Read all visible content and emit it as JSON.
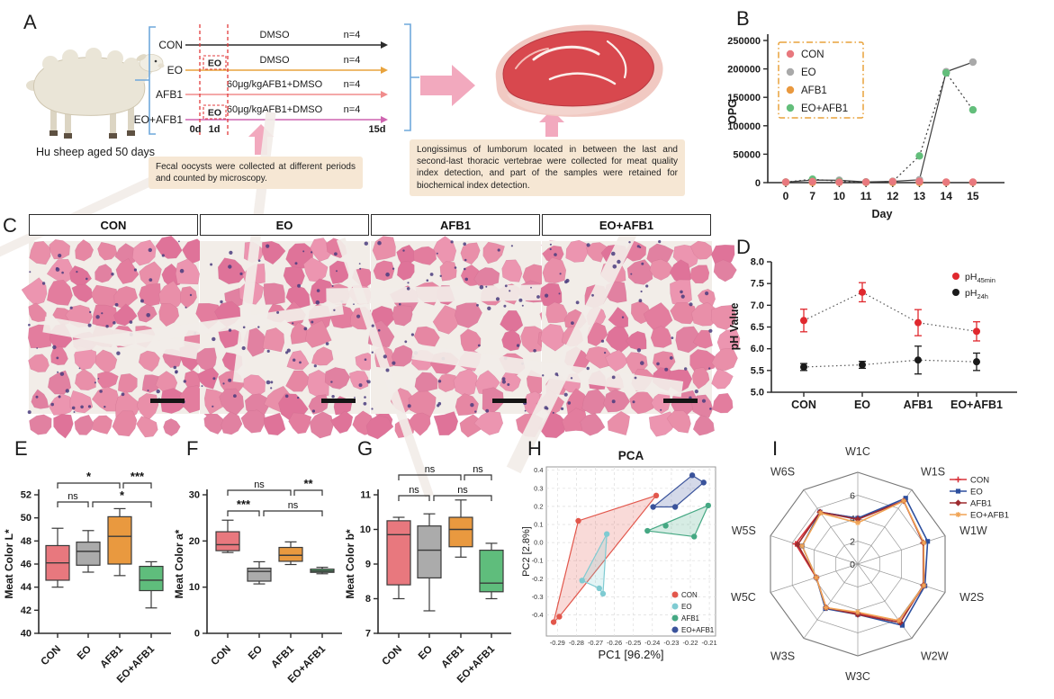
{
  "panel_letters": {
    "A": "A",
    "B": "B",
    "C": "C",
    "D": "D",
    "E": "E",
    "F": "F",
    "G": "G",
    "H": "H",
    "I": "I"
  },
  "groups": [
    "CON",
    "EO",
    "AFB1",
    "EO+AFB1"
  ],
  "group_colors": {
    "CON": "#E8787E",
    "EO": "#ABABAB",
    "AFB1": "#E9993F",
    "EO+AFB1": "#5FBD7C"
  },
  "panelA": {
    "sheep_caption": "Hu sheep aged 50 days",
    "eo_box_label": "EO",
    "timeline": {
      "start": "0d",
      "second": "1d",
      "end": "15d"
    },
    "rows": [
      {
        "name": "CON",
        "treatment": "DMSO",
        "n": "n=4",
        "color": "#2b2b2b",
        "eo_pre": false
      },
      {
        "name": "EO",
        "treatment": "DMSO",
        "n": "n=4",
        "color": "#E8A33D",
        "eo_pre": true
      },
      {
        "name": "AFB1",
        "treatment": "60μg/kgAFB1+DMSO",
        "n": "n=4",
        "color": "#F08C8C",
        "eo_pre": false
      },
      {
        "name": "EO+AFB1",
        "treatment": "60μg/kgAFB1+DMSO",
        "n": "n=4",
        "color": "#CE64B0",
        "eo_pre": true
      }
    ],
    "note_left": "Fecal oocysts were collected at different periods and counted by microscopy.",
    "note_right": "Longissimus of lumborum located in between the last and second-last thoracic vertebrae  were collected for meat quality index detection, and part of the samples were retained for biochemical index detection."
  },
  "panelC": {
    "groups": [
      "CON",
      "EO",
      "AFB1",
      "EO+AFB1"
    ]
  },
  "chart_data": [
    {
      "id": "B",
      "type": "scatter-line",
      "title": "",
      "xlabel": "Day",
      "ylabel": "OPG",
      "x": [
        0,
        7,
        10,
        11,
        12,
        13,
        14,
        15
      ],
      "xtick_labels": [
        "0",
        "7",
        "10",
        "11",
        "12",
        "13",
        "14",
        "15"
      ],
      "ylim": [
        0,
        250000
      ],
      "ytick_labels": [
        "0",
        "50000",
        "100000",
        "150000",
        "200000",
        "250000"
      ],
      "legend_border": "#E9A23B",
      "series": [
        {
          "name": "AFB1",
          "color": "#E9993F",
          "line": "none",
          "values": [
            600,
            600,
            600,
            600,
            600,
            600,
            600,
            600
          ]
        },
        {
          "name": "EO",
          "color": "#A9A9A9",
          "line": "solid",
          "values": [
            900,
            4500,
            4200,
            1200,
            2200,
            5000,
            195000,
            212000
          ]
        },
        {
          "name": "EO+AFB1",
          "color": "#63BE7B",
          "line": "dotted",
          "values": [
            900,
            6000,
            2200,
            900,
            1800,
            47000,
            193000,
            128000
          ]
        },
        {
          "name": "CON",
          "color": "#E8787E",
          "line": "none",
          "values": [
            900,
            1800,
            900,
            900,
            1800,
            2200,
            900,
            900
          ]
        }
      ],
      "legend_order": [
        "CON",
        "EO",
        "AFB1",
        "EO+AFB1"
      ],
      "legend_colors": [
        "#E8787E",
        "#A9A9A9",
        "#E9993F",
        "#63BE7B"
      ]
    },
    {
      "id": "D",
      "type": "point-error",
      "ylabel": "pH Value",
      "categories": [
        "CON",
        "EO",
        "AFB1",
        "EO+AFB1"
      ],
      "ylim": [
        5.0,
        8.0
      ],
      "ytick_labels": [
        "5.0",
        "5.5",
        "6.0",
        "6.5",
        "7.0",
        "7.5",
        "8.0"
      ],
      "series": [
        {
          "name": "pH45min",
          "base": "pH",
          "sub": "45min",
          "color": "#E0282E",
          "means": [
            6.65,
            7.3,
            6.6,
            6.4
          ],
          "errors": [
            0.26,
            0.22,
            0.3,
            0.22
          ]
        },
        {
          "name": "pH24h",
          "base": "pH",
          "sub": "24h",
          "color": "#1a1a1a",
          "means": [
            5.58,
            5.63,
            5.74,
            5.7
          ],
          "errors": [
            0.08,
            0.08,
            0.32,
            0.2
          ]
        }
      ]
    },
    {
      "id": "E",
      "type": "box",
      "ylabel": "Meat Color L*",
      "categories": [
        "CON",
        "EO",
        "AFB1",
        "EO+AFB1"
      ],
      "colors": [
        "#E8787E",
        "#ABABAB",
        "#E9993F",
        "#5FBD7C"
      ],
      "ylim": [
        40,
        52
      ],
      "ytick_labels": [
        "40",
        "42",
        "44",
        "46",
        "48",
        "50",
        "52"
      ],
      "boxes": [
        {
          "min": 44.0,
          "q1": 44.6,
          "med": 46.1,
          "q3": 47.6,
          "max": 49.1
        },
        {
          "min": 45.3,
          "q1": 45.9,
          "med": 47.1,
          "q3": 47.9,
          "max": 48.9
        },
        {
          "min": 45.0,
          "q1": 46.0,
          "med": 48.4,
          "q3": 50.1,
          "max": 50.8
        },
        {
          "min": 42.2,
          "q1": 43.7,
          "med": 44.6,
          "q3": 45.8,
          "max": 46.2
        }
      ],
      "sig": [
        {
          "row": 1,
          "a": 0,
          "b": 2,
          "label": "*"
        },
        {
          "row": 1,
          "a": 2,
          "b": 3,
          "label": "***"
        },
        {
          "row": 2,
          "a": 0,
          "b": 1,
          "label": "ns"
        },
        {
          "row": 2,
          "a": 1,
          "b": 3,
          "label": "*"
        }
      ]
    },
    {
      "id": "F",
      "type": "box",
      "ylabel": "Meat Color a*",
      "categories": [
        "CON",
        "EO",
        "AFB1",
        "EO+AFB1"
      ],
      "colors": [
        "#E8787E",
        "#ABABAB",
        "#E9993F",
        "#5FBD7C"
      ],
      "ylim": [
        0,
        30
      ],
      "ytick_labels": [
        "0",
        "10",
        "20",
        "30"
      ],
      "boxes": [
        {
          "min": 17.5,
          "q1": 17.9,
          "med": 19.2,
          "q3": 22.0,
          "max": 24.5
        },
        {
          "min": 10.7,
          "q1": 11.3,
          "med": 13.4,
          "q3": 14.1,
          "max": 15.5
        },
        {
          "min": 14.9,
          "q1": 15.6,
          "med": 16.9,
          "q3": 18.6,
          "max": 19.8
        },
        {
          "min": 12.9,
          "q1": 13.2,
          "med": 13.5,
          "q3": 13.9,
          "max": 14.3
        }
      ],
      "sig": [
        {
          "row": 1,
          "a": 0,
          "b": 2,
          "label": "ns"
        },
        {
          "row": 1,
          "a": 2,
          "b": 3,
          "label": "**"
        },
        {
          "row": 2,
          "a": 0,
          "b": 1,
          "label": "***"
        },
        {
          "row": 2,
          "a": 1,
          "b": 3,
          "label": "ns"
        }
      ]
    },
    {
      "id": "G",
      "type": "box",
      "ylabel": "Meat Color b*",
      "categories": [
        "CON",
        "EO",
        "AFB1",
        "EO+AFB1"
      ],
      "colors": [
        "#E8787E",
        "#ABABAB",
        "#E9993F",
        "#5FBD7C"
      ],
      "ylim": [
        7,
        11
      ],
      "ytick_labels": [
        "7",
        "8",
        "9",
        "10",
        "11"
      ],
      "boxes": [
        {
          "min": 8.0,
          "q1": 8.4,
          "med": 9.85,
          "q3": 10.25,
          "max": 10.35
        },
        {
          "min": 7.65,
          "q1": 8.6,
          "med": 9.4,
          "q3": 10.1,
          "max": 10.45
        },
        {
          "min": 9.2,
          "q1": 9.5,
          "med": 10.0,
          "q3": 10.35,
          "max": 10.85
        },
        {
          "min": 8.0,
          "q1": 8.2,
          "med": 8.45,
          "q3": 9.4,
          "max": 9.6
        }
      ],
      "sig": [
        {
          "row": 1,
          "a": 0,
          "b": 2,
          "label": "ns"
        },
        {
          "row": 1,
          "a": 2,
          "b": 3,
          "label": "ns"
        },
        {
          "row": 2,
          "a": 0,
          "b": 1,
          "label": "ns"
        },
        {
          "row": 2,
          "a": 1,
          "b": 3,
          "label": "ns"
        }
      ]
    },
    {
      "id": "H",
      "type": "scatter-pca",
      "title": "PCA",
      "xlabel": "PC1 [96.2%]",
      "ylabel": "PC2 [2.8%]",
      "xlim": [
        -0.295,
        -0.207
      ],
      "ylim": [
        -0.45,
        0.42
      ],
      "xticks": [
        -0.29,
        -0.28,
        -0.27,
        -0.26,
        -0.25,
        -0.24,
        -0.23,
        -0.22,
        -0.21
      ],
      "xtick_labels": [
        "-0.29",
        "-0.28",
        "-0.27",
        "-0.26",
        "-0.25",
        "-0.24",
        "-0.23",
        "-0.22",
        "-0.21"
      ],
      "yticks": [
        0.4,
        0.3,
        0.2,
        0.1,
        0.0,
        -0.1,
        -0.2,
        -0.3,
        -0.4
      ],
      "ytick_labels": [
        "0.4",
        "0.3",
        "0.2",
        "0.1",
        "0.0",
        "-0.1",
        "-0.2",
        "-0.3",
        "-0.4"
      ],
      "groups": [
        {
          "name": "CON",
          "color": "#E2574C",
          "points": [
            [
              -0.238,
              0.26
            ],
            [
              -0.279,
              0.12
            ],
            [
              -0.289,
              -0.41
            ],
            [
              -0.292,
              -0.44
            ]
          ],
          "hull": [
            0,
            1,
            3,
            2
          ]
        },
        {
          "name": "EO",
          "color": "#7FCBD2",
          "points": [
            [
              -0.264,
              0.047
            ],
            [
              -0.277,
              -0.21
            ],
            [
              -0.268,
              -0.253
            ],
            [
              -0.266,
              -0.283
            ]
          ],
          "hull": [
            0,
            1,
            2,
            3
          ]
        },
        {
          "name": "AFB1",
          "color": "#45A883",
          "points": [
            [
              -0.2426,
              0.065
            ],
            [
              -0.233,
              0.093
            ],
            [
              -0.218,
              0.033
            ],
            [
              -0.2106,
              0.205
            ]
          ],
          "hull": [
            0,
            3,
            2
          ]
        },
        {
          "name": "EO+AFB1",
          "color": "#3A539B",
          "points": [
            [
              -0.2396,
              0.197
            ],
            [
              -0.228,
              0.197
            ],
            [
              -0.219,
              0.372
            ],
            [
              -0.213,
              0.332
            ]
          ],
          "hull": [
            0,
            2,
            3,
            1
          ]
        }
      ]
    },
    {
      "id": "I",
      "type": "radar",
      "axes": [
        "W1C",
        "W1S",
        "W1W",
        "W2S",
        "W2W",
        "W3C",
        "W3S",
        "W5C",
        "W5S",
        "W6S"
      ],
      "rmax": 8,
      "rings": [
        2,
        4,
        6,
        8
      ],
      "tick_labels": [
        "0",
        "2",
        "4",
        "6"
      ],
      "series": [
        {
          "name": "CON",
          "color": "#D8333A",
          "marker": "plus",
          "values": [
            4.0,
            6.8,
            6.0,
            6.1,
            6.1,
            4.3,
            4.7,
            3.8,
            5.7,
            5.6
          ]
        },
        {
          "name": "EO",
          "color": "#2D4F9E",
          "marker": "square",
          "values": [
            4.0,
            7.1,
            6.4,
            6.15,
            6.6,
            4.4,
            4.8,
            3.8,
            5.1,
            5.6
          ]
        },
        {
          "name": "AFB1",
          "color": "#9E2B2F",
          "marker": "diamond",
          "values": [
            3.9,
            6.8,
            6.0,
            6.0,
            6.3,
            4.4,
            4.7,
            3.8,
            5.5,
            5.6
          ]
        },
        {
          "name": "EO+AFB1",
          "color": "#F0A455",
          "marker": "star",
          "values": [
            3.6,
            6.8,
            6.05,
            6.05,
            6.1,
            4.2,
            4.7,
            3.8,
            5.1,
            5.5
          ]
        }
      ]
    }
  ]
}
